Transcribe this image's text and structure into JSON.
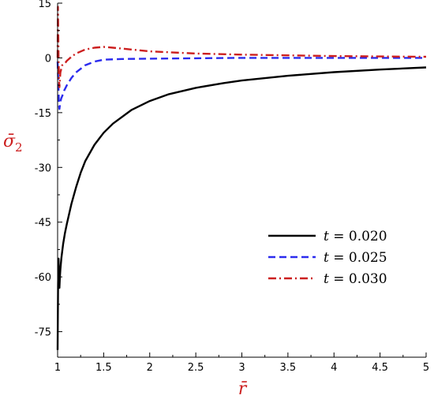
{
  "chart_data": {
    "type": "line",
    "xlabel": "r̄",
    "ylabel": "σ̄",
    "ylabel_sub": "2",
    "xlim": [
      1,
      5
    ],
    "ylim": [
      -82,
      15
    ],
    "x_ticks": [
      "1",
      "1.5",
      "2",
      "2.5",
      "3",
      "3.5",
      "4",
      "4.5",
      "5"
    ],
    "y_ticks": [
      "15",
      "0",
      "-15",
      "-30",
      "-45",
      "-60",
      "-75"
    ],
    "grid": false,
    "legend_position": "lower-right",
    "colors": {
      "axis_title": "#cc1f1f"
    },
    "series": [
      {
        "name": "t = 0.020",
        "name_var": "t",
        "name_rest": " = 0.020",
        "color": "#000000",
        "dash": "solid",
        "x": [
          1.0,
          1.005,
          1.01,
          1.015,
          1.02,
          1.025,
          1.03,
          1.04,
          1.06,
          1.08,
          1.1,
          1.15,
          1.2,
          1.25,
          1.3,
          1.4,
          1.5,
          1.6,
          1.8,
          2.0,
          2.2,
          2.5,
          2.8,
          3.0,
          3.5,
          4.0,
          4.5,
          5.0
        ],
        "y": [
          -80,
          -62,
          -55,
          -60,
          -63,
          -60,
          -58,
          -55,
          -51,
          -48,
          -45.5,
          -40,
          -35.5,
          -31.5,
          -28.3,
          -23.8,
          -20.5,
          -18.0,
          -14.3,
          -11.8,
          -10.0,
          -8.2,
          -6.9,
          -6.2,
          -4.9,
          -3.9,
          -3.2,
          -2.6
        ]
      },
      {
        "name": "t = 0.025",
        "name_var": "t",
        "name_rest": " = 0.025",
        "color": "#2b2bee",
        "dash": "dashed",
        "x": [
          1.0,
          1.005,
          1.01,
          1.015,
          1.02,
          1.03,
          1.04,
          1.05,
          1.07,
          1.1,
          1.15,
          1.2,
          1.3,
          1.4,
          1.5,
          1.7,
          2.0,
          2.5,
          3.0,
          4.0,
          5.0
        ],
        "y": [
          -1,
          -5,
          -9,
          -13,
          -14,
          -12,
          -11,
          -10.5,
          -9,
          -7.5,
          -5.5,
          -4.0,
          -2.0,
          -1.0,
          -0.5,
          -0.3,
          -0.2,
          -0.1,
          0,
          0,
          0
        ]
      },
      {
        "name": "t = 0.030",
        "name_var": "t",
        "name_rest": " = 0.030",
        "color": "#cc1f1f",
        "dash": "dashdot",
        "x": [
          1.0,
          1.003,
          1.006,
          1.01,
          1.015,
          1.02,
          1.03,
          1.05,
          1.08,
          1.1,
          1.15,
          1.2,
          1.3,
          1.4,
          1.5,
          1.6,
          1.8,
          2.0,
          2.5,
          3.0,
          3.5,
          4.0,
          4.5,
          5.0
        ],
        "y": [
          0,
          14,
          9,
          0,
          -6,
          -8,
          -4,
          -2,
          -1.5,
          -0.8,
          0.3,
          1.2,
          2.3,
          2.8,
          3.0,
          2.8,
          2.3,
          1.8,
          1.2,
          0.9,
          0.7,
          0.5,
          0.4,
          0.3
        ]
      }
    ]
  }
}
